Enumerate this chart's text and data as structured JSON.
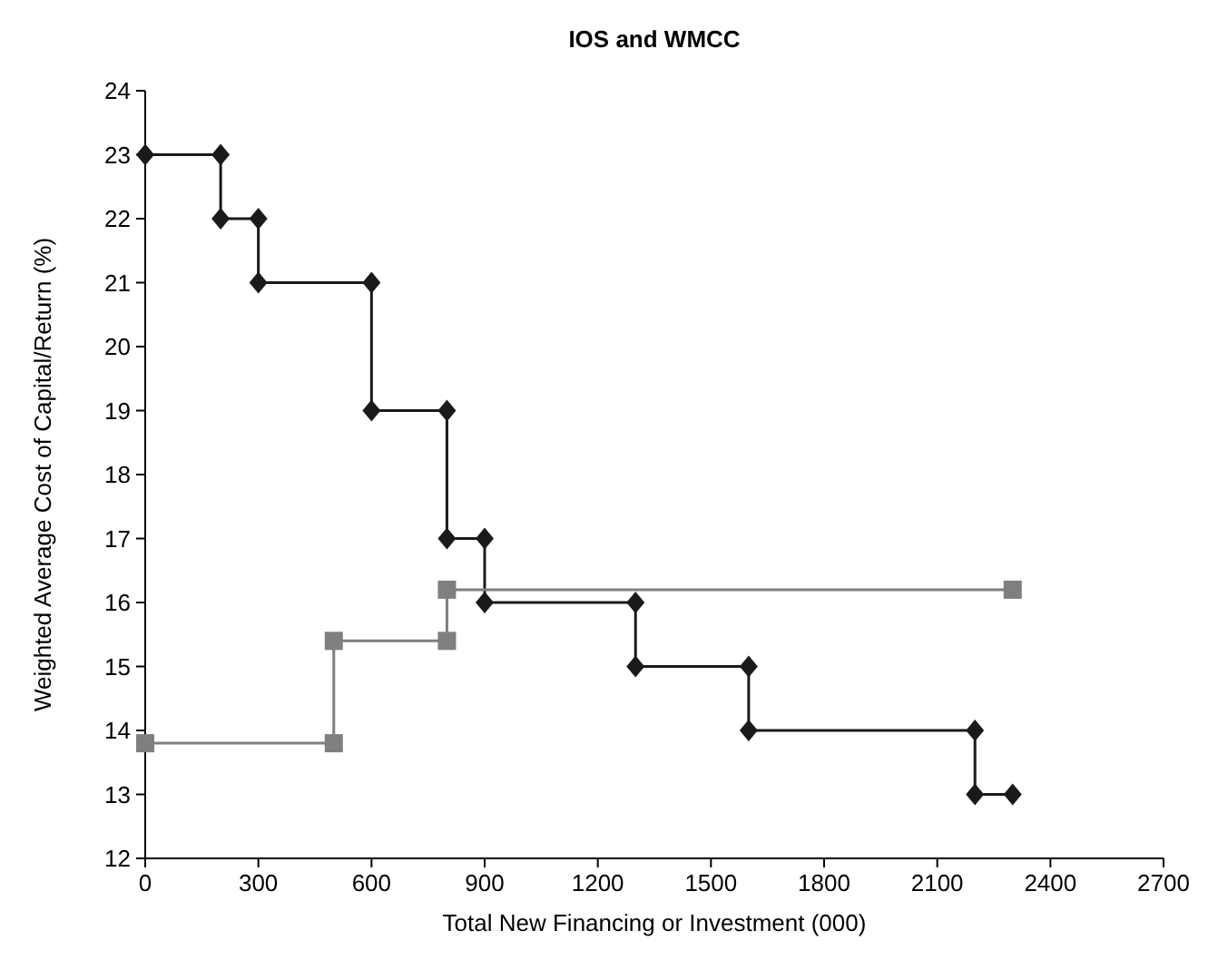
{
  "chart_data": {
    "type": "line",
    "title": "IOS and WMCC",
    "xlabel": "Total New Financing or Investment (000)",
    "ylabel": "Weighted Average Cost of Capital/Return (%)",
    "xlim": [
      0,
      2700
    ],
    "xticks": [
      0,
      300,
      600,
      900,
      1200,
      1500,
      1800,
      2100,
      2400,
      2700
    ],
    "ylim": [
      12,
      24
    ],
    "yticks": [
      12,
      13,
      14,
      15,
      16,
      17,
      18,
      19,
      20,
      21,
      22,
      23,
      24
    ],
    "grid": false,
    "line_style": "solid",
    "series": [
      {
        "color": "#1a1a1a",
        "marker": "diamond",
        "x": [
          0,
          200,
          200,
          300,
          300,
          600,
          600,
          800,
          800,
          900,
          900,
          1300,
          1300,
          1600,
          1600,
          2200,
          2200,
          2300
        ],
        "values": [
          23,
          23,
          22,
          22,
          21,
          21,
          19,
          19,
          17,
          17,
          16,
          16,
          15,
          15,
          14,
          14,
          13,
          13
        ]
      },
      {
        "color": "#7f7f7f",
        "marker": "square",
        "x": [
          0,
          500,
          500,
          800,
          800,
          2300
        ],
        "values": [
          13.8,
          13.8,
          15.4,
          15.4,
          16.2,
          16.2
        ]
      }
    ]
  }
}
